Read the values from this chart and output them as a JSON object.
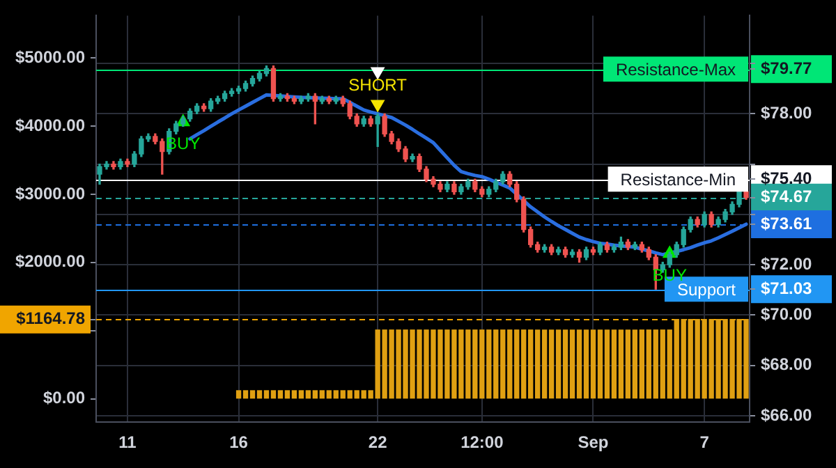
{
  "chart_data": {
    "type": "candlestick",
    "categories": [
      null,
      null,
      null,
      null,
      "11",
      null,
      null,
      null,
      null,
      null,
      null,
      null,
      null,
      null,
      null,
      null,
      null,
      null,
      null,
      null,
      "16",
      null,
      null,
      null,
      null,
      null,
      null,
      null,
      null,
      null,
      null,
      null,
      null,
      null,
      null,
      null,
      null,
      null,
      null,
      null,
      "22",
      null,
      null,
      null,
      null,
      null,
      null,
      null,
      null,
      null,
      null,
      null,
      null,
      null,
      null,
      "12:00",
      null,
      null,
      null,
      null,
      null,
      null,
      null,
      null,
      null,
      null,
      null,
      null,
      null,
      null,
      null,
      "Sep",
      null,
      null,
      null,
      null,
      null,
      null,
      null,
      null,
      null,
      null,
      null,
      null,
      null,
      null,
      null,
      "7",
      null,
      null,
      null,
      null,
      null,
      null
    ],
    "ylim": [
      -340,
      5620
    ],
    "yticks": [
      {
        "value": 0,
        "label": "$0.00"
      },
      {
        "value": 1000,
        "label": null
      },
      {
        "value": 1164.78,
        "label": "$1164.78"
      },
      {
        "value": 2000,
        "label": "$2000.00"
      },
      {
        "value": 3000,
        "label": "$3000.00"
      },
      {
        "value": 4000,
        "label": "$4000.00"
      },
      {
        "value": 5000,
        "label": "$5000.00"
      }
    ],
    "y2lim": [
      65.75,
      81.9
    ],
    "y2ticks": [
      {
        "value": 66,
        "label": "$66.00"
      },
      {
        "value": 68,
        "label": "$68.00"
      },
      {
        "value": 70,
        "label": "$70.00"
      },
      {
        "value": 71.03,
        "label": "$71.03"
      },
      {
        "value": 72,
        "label": "$72.00"
      },
      {
        "value": 73.61,
        "label": "$73.61"
      },
      {
        "value": 74,
        "label": null
      },
      {
        "value": 74.67,
        "label": "$74.67"
      },
      {
        "value": 75.4,
        "label": "$75.40"
      },
      {
        "value": 76,
        "label": null
      },
      {
        "value": 78,
        "label": "$78.00"
      },
      {
        "value": 79.77,
        "label": "$79.77"
      },
      {
        "value": 80,
        "label": null
      }
    ],
    "grid": true,
    "series": [
      {
        "axis": "y2",
        "ohlc": [
          [
            75.6,
            76.0,
            75.2,
            75.9
          ],
          [
            75.9,
            76.1,
            75.8,
            76.0
          ],
          [
            76.0,
            76.1,
            75.8,
            75.9
          ],
          [
            75.9,
            76.2,
            75.8,
            76.1
          ],
          [
            76.1,
            76.2,
            75.9,
            76.0
          ],
          [
            76.0,
            76.5,
            75.9,
            76.4
          ],
          [
            76.4,
            77.1,
            76.3,
            77.0
          ],
          [
            77.0,
            77.2,
            76.9,
            77.1
          ],
          [
            77.1,
            77.2,
            76.8,
            76.9
          ],
          [
            76.9,
            77.0,
            75.6,
            76.5
          ],
          [
            76.5,
            77.4,
            76.4,
            77.3
          ],
          [
            77.3,
            77.7,
            77.2,
            77.6
          ],
          [
            77.6,
            77.9,
            77.5,
            77.8
          ],
          [
            77.8,
            78.2,
            77.7,
            78.1
          ],
          [
            78.1,
            78.4,
            78.0,
            78.3
          ],
          [
            78.3,
            78.4,
            78.1,
            78.2
          ],
          [
            78.2,
            78.6,
            78.1,
            78.5
          ],
          [
            78.5,
            78.7,
            78.4,
            78.6
          ],
          [
            78.6,
            78.9,
            78.5,
            78.8
          ],
          [
            78.8,
            79.0,
            78.7,
            78.9
          ],
          [
            78.9,
            79.1,
            78.8,
            79.0
          ],
          [
            79.0,
            79.3,
            78.9,
            79.2
          ],
          [
            79.2,
            79.5,
            79.1,
            79.4
          ],
          [
            79.4,
            79.7,
            79.3,
            79.6
          ],
          [
            79.6,
            79.9,
            79.5,
            79.8
          ],
          [
            79.8,
            79.9,
            78.5,
            78.6
          ],
          [
            78.6,
            78.8,
            78.5,
            78.7
          ],
          [
            78.7,
            78.8,
            78.5,
            78.6
          ],
          [
            78.6,
            78.7,
            78.4,
            78.5
          ],
          [
            78.5,
            78.7,
            78.4,
            78.6
          ],
          [
            78.6,
            78.8,
            78.5,
            78.7
          ],
          [
            78.7,
            78.8,
            77.6,
            78.5
          ],
          [
            78.5,
            78.7,
            78.4,
            78.6
          ],
          [
            78.6,
            78.7,
            78.4,
            78.5
          ],
          [
            78.5,
            78.7,
            78.4,
            78.6
          ],
          [
            78.6,
            78.7,
            78.3,
            78.4
          ],
          [
            78.4,
            78.5,
            77.8,
            77.9
          ],
          [
            77.9,
            78.0,
            77.5,
            77.6
          ],
          [
            77.6,
            77.9,
            77.5,
            77.8
          ],
          [
            77.8,
            77.9,
            77.5,
            77.6
          ],
          [
            77.6,
            78.0,
            76.7,
            77.9
          ],
          [
            77.9,
            78.0,
            77.1,
            77.2
          ],
          [
            77.2,
            77.3,
            76.8,
            76.9
          ],
          [
            76.9,
            77.0,
            76.5,
            76.6
          ],
          [
            76.6,
            76.7,
            76.1,
            76.2
          ],
          [
            76.2,
            76.4,
            76.1,
            76.3
          ],
          [
            76.3,
            76.4,
            75.7,
            75.8
          ],
          [
            75.8,
            75.9,
            75.3,
            75.4
          ],
          [
            75.4,
            75.5,
            75.1,
            75.2
          ],
          [
            75.2,
            75.3,
            74.9,
            75.0
          ],
          [
            75.0,
            75.3,
            74.9,
            75.2
          ],
          [
            75.2,
            75.3,
            74.8,
            74.9
          ],
          [
            74.9,
            75.2,
            74.8,
            75.1
          ],
          [
            75.1,
            75.4,
            75.0,
            75.3
          ],
          [
            75.3,
            75.4,
            74.9,
            75.0
          ],
          [
            75.0,
            75.1,
            74.7,
            74.8
          ],
          [
            74.8,
            75.1,
            74.7,
            75.0
          ],
          [
            75.0,
            75.4,
            74.9,
            75.3
          ],
          [
            75.3,
            75.7,
            75.2,
            75.6
          ],
          [
            75.6,
            75.7,
            75.1,
            75.2
          ],
          [
            75.2,
            75.3,
            74.5,
            74.6
          ],
          [
            74.6,
            74.7,
            73.3,
            73.4
          ],
          [
            73.4,
            73.5,
            72.7,
            72.8
          ],
          [
            72.8,
            72.9,
            72.5,
            72.6
          ],
          [
            72.6,
            72.8,
            72.5,
            72.7
          ],
          [
            72.7,
            72.8,
            72.4,
            72.5
          ],
          [
            72.5,
            72.7,
            72.4,
            72.6
          ],
          [
            72.6,
            72.7,
            72.3,
            72.4
          ],
          [
            72.4,
            72.6,
            72.3,
            72.5
          ],
          [
            72.5,
            72.6,
            72.1,
            72.3
          ],
          [
            72.3,
            72.7,
            72.2,
            72.6
          ],
          [
            72.6,
            72.7,
            72.4,
            72.5
          ],
          [
            72.5,
            72.9,
            72.4,
            72.8
          ],
          [
            72.8,
            72.9,
            72.5,
            72.6
          ],
          [
            72.6,
            72.8,
            72.5,
            72.7
          ],
          [
            72.7,
            73.1,
            72.6,
            72.9
          ],
          [
            72.9,
            73.0,
            72.6,
            72.7
          ],
          [
            72.7,
            72.9,
            72.6,
            72.8
          ],
          [
            72.8,
            72.9,
            72.5,
            72.6
          ],
          [
            72.6,
            72.7,
            72.2,
            72.3
          ],
          [
            72.3,
            72.4,
            71.03,
            71.8
          ],
          [
            71.8,
            72.1,
            71.7,
            72.0
          ],
          [
            72.0,
            72.5,
            71.9,
            72.4
          ],
          [
            72.4,
            72.9,
            72.3,
            72.8
          ],
          [
            72.8,
            73.5,
            72.7,
            73.4
          ],
          [
            73.4,
            73.9,
            73.3,
            73.8
          ],
          [
            73.8,
            73.9,
            73.5,
            73.6
          ],
          [
            73.6,
            74.1,
            73.5,
            74.0
          ],
          [
            74.0,
            74.1,
            73.5,
            73.6
          ],
          [
            73.6,
            73.9,
            73.5,
            73.8
          ],
          [
            73.8,
            74.2,
            73.7,
            74.1
          ],
          [
            74.1,
            74.5,
            74.0,
            74.4
          ],
          [
            74.4,
            75.0,
            74.3,
            74.9
          ],
          [
            74.9,
            75.0,
            74.6,
            74.67
          ]
        ]
      },
      {
        "type": "line",
        "axis": "y2",
        "color": "#2a6ee0",
        "values": [
          null,
          null,
          null,
          null,
          null,
          null,
          null,
          null,
          null,
          null,
          null,
          null,
          null,
          77.0,
          77.17,
          77.33,
          77.5,
          77.67,
          77.83,
          78.0,
          78.15,
          78.3,
          78.45,
          78.6,
          78.75,
          78.73,
          78.71,
          78.69,
          78.67,
          78.65,
          78.64,
          78.63,
          78.62,
          78.61,
          78.6,
          78.6,
          78.45,
          78.3,
          78.15,
          78.07,
          78.0,
          77.92,
          77.85,
          77.7,
          77.55,
          77.38,
          77.2,
          77.03,
          76.85,
          76.55,
          76.25,
          75.95,
          75.7,
          75.62,
          75.55,
          75.5,
          75.4,
          75.28,
          75.17,
          75.05,
          74.8,
          74.55,
          74.3,
          74.1,
          73.9,
          73.72,
          73.55,
          73.4,
          73.25,
          73.1,
          73.0,
          72.92,
          72.85,
          72.82,
          72.78,
          72.75,
          72.72,
          72.7,
          72.62,
          72.55,
          72.47,
          72.4,
          72.47,
          72.53,
          72.6,
          72.68,
          72.78,
          72.87,
          72.95,
          73.07,
          73.2,
          73.33,
          73.47,
          73.61
        ]
      },
      {
        "type": "bar",
        "axis": "y",
        "color": "#e0a012",
        "values": [
          null,
          null,
          null,
          null,
          null,
          null,
          null,
          null,
          null,
          null,
          null,
          null,
          null,
          null,
          null,
          null,
          null,
          null,
          null,
          null,
          120,
          120,
          120,
          120,
          120,
          120,
          120,
          120,
          120,
          120,
          120,
          120,
          120,
          120,
          120,
          120,
          120,
          120,
          120,
          120,
          1010,
          1010,
          1010,
          1010,
          1010,
          1010,
          1010,
          1010,
          1010,
          1010,
          1010,
          1010,
          1010,
          1010,
          1010,
          1010,
          1010,
          1010,
          1010,
          1010,
          1010,
          1010,
          1010,
          1010,
          1010,
          1010,
          1010,
          1010,
          1010,
          1010,
          1010,
          1010,
          1010,
          1010,
          1010,
          1010,
          1010,
          1010,
          1010,
          1010,
          1010,
          1010,
          1010,
          1164.78,
          1164.78,
          1164.78,
          1164.78,
          1164.78,
          1164.78,
          1164.78,
          1164.78,
          1164.78,
          1164.78,
          1164.78
        ]
      },
      {
        "type": "scatter",
        "axis": "y2",
        "name": "BUY",
        "color": "#00e600",
        "marker": "triangle",
        "values": [
          null,
          null,
          null,
          null,
          null,
          null,
          null,
          null,
          null,
          null,
          null,
          null,
          77.67,
          null,
          null,
          null,
          null,
          null,
          null,
          null,
          null,
          null,
          null,
          null,
          null,
          null,
          null,
          null,
          null,
          null,
          null,
          null,
          null,
          null,
          null,
          null,
          null,
          null,
          null,
          null,
          null,
          null,
          null,
          null,
          null,
          null,
          null,
          null,
          null,
          null,
          null,
          null,
          null,
          null,
          null,
          null,
          null,
          null,
          null,
          null,
          null,
          null,
          null,
          null,
          null,
          null,
          null,
          null,
          null,
          null,
          null,
          null,
          null,
          null,
          null,
          null,
          null,
          null,
          null,
          null,
          null,
          null,
          72.44,
          null,
          null,
          null,
          null,
          null,
          null,
          null,
          null,
          null,
          null,
          null
        ]
      },
      {
        "type": "scatter",
        "axis": "y2",
        "name": "SHORT",
        "color": "#f5e400",
        "marker": "triangle",
        "values": [
          null,
          null,
          null,
          null,
          null,
          null,
          null,
          null,
          null,
          null,
          null,
          null,
          null,
          null,
          null,
          null,
          null,
          null,
          null,
          null,
          null,
          null,
          null,
          null,
          null,
          null,
          null,
          null,
          null,
          null,
          null,
          null,
          null,
          null,
          null,
          null,
          null,
          null,
          null,
          null,
          78.38,
          null,
          null,
          null,
          null,
          null,
          null,
          null,
          null,
          null,
          null,
          null,
          null,
          null,
          null,
          null,
          null,
          null,
          null,
          null,
          null,
          null,
          null,
          null,
          null,
          null,
          null,
          null,
          null,
          null,
          null,
          null,
          null,
          null,
          null,
          null,
          null,
          null,
          null,
          null,
          null,
          null,
          null,
          null,
          null,
          null,
          null,
          null,
          null,
          null,
          null,
          null,
          null,
          null
        ]
      },
      {
        "type": "scatter",
        "axis": "y2",
        "color": "#ffffff",
        "marker": "triangle",
        "values": [
          null,
          null,
          null,
          null,
          null,
          null,
          null,
          null,
          null,
          null,
          null,
          null,
          null,
          null,
          null,
          null,
          null,
          null,
          null,
          null,
          null,
          null,
          null,
          null,
          null,
          null,
          null,
          null,
          null,
          null,
          null,
          null,
          null,
          null,
          null,
          null,
          null,
          null,
          null,
          null,
          79.68,
          null,
          null,
          null,
          null,
          null,
          null,
          null,
          null,
          null,
          null,
          null,
          null,
          null,
          null,
          null,
          null,
          null,
          null,
          null,
          null,
          null,
          null,
          null,
          null,
          null,
          null,
          null,
          null,
          null,
          null,
          null,
          null,
          null,
          null,
          null,
          null,
          null,
          null,
          null,
          null,
          null,
          null,
          null,
          null,
          null,
          null,
          null,
          null,
          null,
          null,
          null,
          null,
          null
        ]
      }
    ],
    "ref_lines": [
      {
        "axis": "y2",
        "value": 79.77,
        "label": "Resistance-Max",
        "color": "#00e676",
        "line_style": "solid"
      },
      {
        "axis": "y2",
        "value": 75.4,
        "label": "Resistance-Min",
        "color": "#ffffff",
        "line_style": "solid"
      },
      {
        "axis": "y2",
        "value": 74.67,
        "color": "#26a69a",
        "line_style": "dashed"
      },
      {
        "axis": "y2",
        "value": 73.61,
        "color": "#1e6fe0",
        "line_style": "dashed"
      },
      {
        "axis": "y2",
        "value": 71.03,
        "label": "Support",
        "color": "#2196f3",
        "line_style": "solid"
      },
      {
        "axis": "y",
        "value": 1164.78,
        "color": "#f0a500",
        "line_style": "dashed"
      }
    ]
  }
}
